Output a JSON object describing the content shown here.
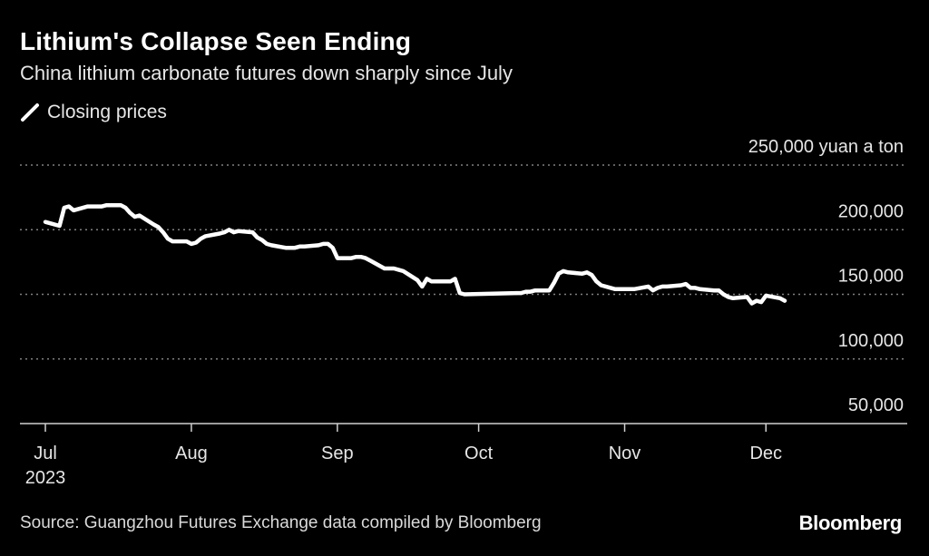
{
  "header": {
    "title": "Lithium's Collapse Seen Ending",
    "subtitle": "China lithium carbonate futures down sharply since July"
  },
  "legend": {
    "label": "Closing prices"
  },
  "footer": {
    "source": "Source: Guangzhou Futures Exchange data compiled by Bloomberg",
    "brand": "Bloomberg"
  },
  "colors": {
    "background": "#000000",
    "line": "#ffffff",
    "grid": "#808080",
    "text": "#e6e6e6"
  },
  "chart_data": {
    "type": "line",
    "title": "Lithium's Collapse Seen Ending",
    "subtitle": "China lithium carbonate futures down sharply since July",
    "xlabel": "",
    "ylabel": "",
    "ylim": [
      50000,
      250000
    ],
    "yticks": [
      250000,
      200000,
      150000,
      100000,
      50000
    ],
    "ytick_labels": [
      "250,000 yuan a ton",
      "200,000",
      "150,000",
      "100,000",
      "50,000"
    ],
    "xlim": [
      "2023-07-01",
      "2023-12-31"
    ],
    "xticks": [
      "2023-07-01",
      "2023-08-01",
      "2023-09-01",
      "2023-10-01",
      "2023-11-01",
      "2023-12-01"
    ],
    "xtick_labels": [
      "Jul",
      "Aug",
      "Sep",
      "Oct",
      "Nov",
      "Dec"
    ],
    "xtick_sublabels": [
      "2023",
      "",
      "",
      "",
      "",
      ""
    ],
    "grid": true,
    "legend_position": "top-left",
    "series": [
      {
        "name": "Closing prices",
        "x": [
          "2023-07-01",
          "2023-07-04",
          "2023-07-05",
          "2023-07-06",
          "2023-07-07",
          "2023-07-10",
          "2023-07-11",
          "2023-07-12",
          "2023-07-13",
          "2023-07-14",
          "2023-07-17",
          "2023-07-18",
          "2023-07-19",
          "2023-07-20",
          "2023-07-21",
          "2023-07-24",
          "2023-07-25",
          "2023-07-26",
          "2023-07-27",
          "2023-07-28",
          "2023-07-31",
          "2023-08-01",
          "2023-08-02",
          "2023-08-03",
          "2023-08-04",
          "2023-08-07",
          "2023-08-08",
          "2023-08-09",
          "2023-08-10",
          "2023-08-11",
          "2023-08-14",
          "2023-08-15",
          "2023-08-16",
          "2023-08-17",
          "2023-08-18",
          "2023-08-21",
          "2023-08-22",
          "2023-08-23",
          "2023-08-24",
          "2023-08-25",
          "2023-08-28",
          "2023-08-29",
          "2023-08-30",
          "2023-08-31",
          "2023-09-01",
          "2023-09-04",
          "2023-09-05",
          "2023-09-06",
          "2023-09-07",
          "2023-09-08",
          "2023-09-11",
          "2023-09-12",
          "2023-09-13",
          "2023-09-14",
          "2023-09-15",
          "2023-09-18",
          "2023-09-19",
          "2023-09-20",
          "2023-09-21",
          "2023-09-22",
          "2023-09-25",
          "2023-09-26",
          "2023-09-27",
          "2023-09-28",
          "2023-10-09",
          "2023-10-10",
          "2023-10-11",
          "2023-10-12",
          "2023-10-13",
          "2023-10-16",
          "2023-10-17",
          "2023-10-18",
          "2023-10-19",
          "2023-10-20",
          "2023-10-23",
          "2023-10-24",
          "2023-10-25",
          "2023-10-26",
          "2023-10-27",
          "2023-10-30",
          "2023-10-31",
          "2023-11-01",
          "2023-11-02",
          "2023-11-03",
          "2023-11-06",
          "2023-11-07",
          "2023-11-08",
          "2023-11-09",
          "2023-11-10",
          "2023-11-13",
          "2023-11-14",
          "2023-11-15",
          "2023-11-16",
          "2023-11-17",
          "2023-11-20",
          "2023-11-21",
          "2023-11-22",
          "2023-11-23",
          "2023-11-24",
          "2023-11-27",
          "2023-11-28",
          "2023-11-29",
          "2023-11-30",
          "2023-12-01",
          "2023-12-04",
          "2023-12-05"
        ],
        "values": [
          206000,
          203000,
          217000,
          218000,
          215000,
          218000,
          218000,
          218000,
          218000,
          219000,
          219000,
          217000,
          213000,
          210000,
          211000,
          204000,
          202000,
          198000,
          193000,
          191000,
          191000,
          189000,
          190000,
          193000,
          195000,
          197000,
          198000,
          200000,
          198000,
          199000,
          198000,
          194000,
          192000,
          189000,
          188000,
          186000,
          186000,
          186000,
          187000,
          187000,
          188000,
          189000,
          189000,
          186000,
          178000,
          178000,
          179000,
          179000,
          178000,
          176000,
          170000,
          170000,
          170000,
          169000,
          168000,
          161000,
          156000,
          162000,
          160000,
          160000,
          160000,
          162000,
          151000,
          150000,
          151000,
          151000,
          152000,
          152000,
          153000,
          153000,
          159000,
          166000,
          168000,
          167000,
          166000,
          167000,
          165000,
          160000,
          157000,
          154000,
          154000,
          154000,
          154000,
          154000,
          156000,
          153000,
          155000,
          156000,
          156000,
          157000,
          158000,
          155000,
          155000,
          154000,
          153000,
          153000,
          150000,
          148000,
          147000,
          148000,
          143000,
          145000,
          144000,
          149000,
          147000,
          145000
        ]
      }
    ]
  }
}
